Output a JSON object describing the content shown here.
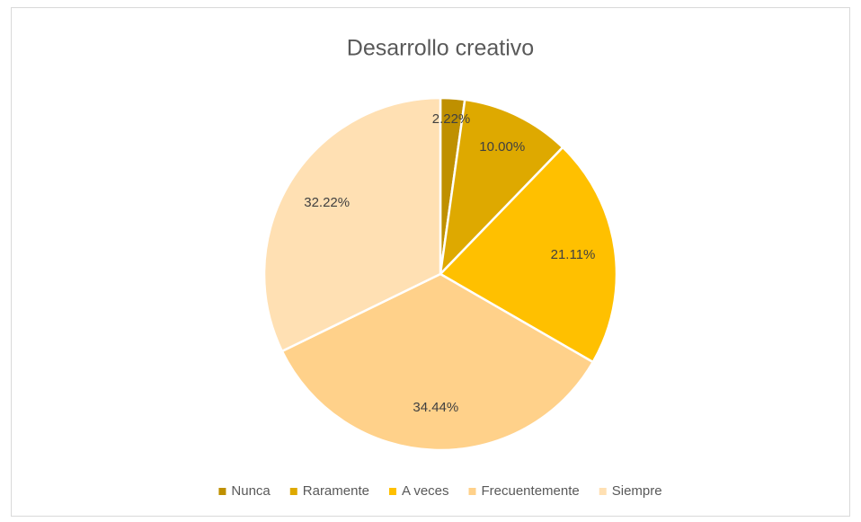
{
  "chart_data": {
    "type": "pie",
    "title": "Desarrollo creativo",
    "categories": [
      "Nunca",
      "Raramente",
      "A veces",
      "Frecuentemente",
      "Siempre"
    ],
    "values": [
      2.22,
      10.0,
      21.11,
      34.44,
      32.22
    ],
    "value_labels": [
      "2.22%",
      "10.00%",
      "21.11%",
      "34.44%",
      "32.22%"
    ],
    "colors": [
      "#bf9000",
      "#dea900",
      "#ffc000",
      "#ffd18a",
      "#ffe0b3"
    ],
    "legend": "bottom"
  }
}
